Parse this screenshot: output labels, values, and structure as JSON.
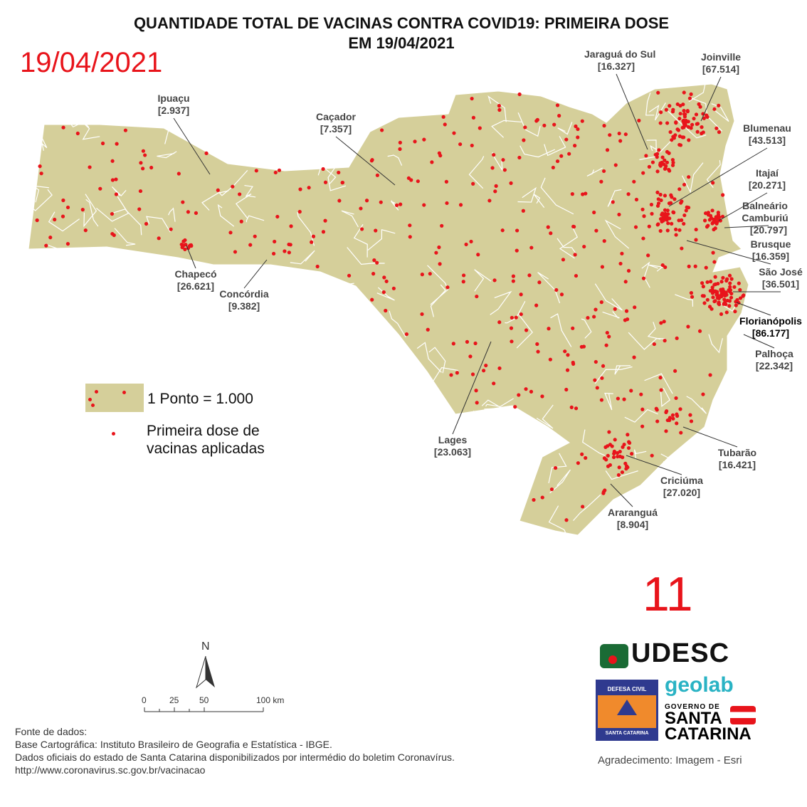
{
  "title_line1": "QUANTIDADE TOTAL DE VACINAS CONTRA COVID19: PRIMEIRA DOSE",
  "title_line2": "EM 19/04/2021",
  "date_stamp": "19/04/2021",
  "page_number": "11",
  "colors": {
    "land": "#d5cf9a",
    "borders": "#ffffff",
    "dots": "#e8141b",
    "stamp": "#e8141b"
  },
  "legend": {
    "scale_text": "1 Ponto = 1.000",
    "dot_text_line1": "Primeira dose de",
    "dot_text_line2": "vacinas aplicadas"
  },
  "cities": [
    {
      "name": "Ipuaçu",
      "value": "[2.937]"
    },
    {
      "name": "Caçador",
      "value": "[7.357]"
    },
    {
      "name": "Chapecó",
      "value": "[26.621]"
    },
    {
      "name": "Concórdia",
      "value": "[9.382]"
    },
    {
      "name": "Jaraguá do Sul",
      "value": "[16.327]"
    },
    {
      "name": "Joinville",
      "value": "[67.514]"
    },
    {
      "name": "Blumenau",
      "value": "[43.513]"
    },
    {
      "name": "Itajaí",
      "value": "[20.271]"
    },
    {
      "name": "Balneário Camburiú",
      "value": "[20.797]"
    },
    {
      "name": "Brusque",
      "value": "[16.359]"
    },
    {
      "name": "São José",
      "value": "[36.501]"
    },
    {
      "name": "Florianópolis",
      "value": "[86.177]"
    },
    {
      "name": "Palhoça",
      "value": "[22.342]"
    },
    {
      "name": "Lages",
      "value": "[23.063]"
    },
    {
      "name": "Tubarão",
      "value": "[16.421]"
    },
    {
      "name": "Criciúma",
      "value": "[27.020]"
    },
    {
      "name": "Araranguá",
      "value": "[8.904]"
    }
  ],
  "north_arrow": "N",
  "scale_bar": {
    "ticks": [
      "0",
      "25",
      "50",
      "100 km"
    ]
  },
  "sources": [
    "Fonte de dados:",
    "Base Cartográfica: Instituto Brasileiro de Geografia e Estatística - IBGE.",
    "Dados oficiais do estado de Santa Catarina disponibilizados por intermédio do boletim Coronavírus.",
    "http://www.coronavirus.sc.gov.br/vacinacao"
  ],
  "logos": {
    "udesc": "UDESC",
    "defesa_civil_top": "DEFESA CIVIL",
    "defesa_civil_bottom": "SANTA CATARINA",
    "geolab": "geolab",
    "governo": "GOVERNO DE",
    "governo_state1": "SANTA",
    "governo_state2": "CATARINA"
  },
  "acknowledgement": "Agradecimento: Imagem - Esri"
}
